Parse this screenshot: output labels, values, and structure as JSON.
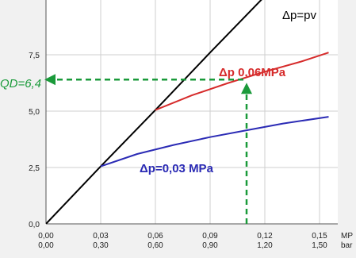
{
  "chart_data": {
    "type": "line",
    "x": {
      "ticks": [
        0,
        0.03,
        0.06,
        0.09,
        0.12,
        0.15
      ],
      "primary_labels": [
        "0,00",
        "0,03",
        "0,06",
        "0,09",
        "0,12",
        "0,15"
      ],
      "secondary_labels": [
        "0,00",
        "0,30",
        "0,60",
        "0,90",
        "1,20",
        "1,50"
      ],
      "primary_unit": "MP",
      "secondary_unit": "bar",
      "range": [
        0,
        0.15
      ]
    },
    "y": {
      "ticks": [
        0,
        2.5,
        5.0,
        7.5
      ],
      "labels": [
        "0,0",
        "2,5",
        "5,0",
        "7,5"
      ],
      "range": [
        0,
        10
      ]
    },
    "grid": true,
    "series": [
      {
        "name": "Δp=pv",
        "color": "#000000",
        "points": [
          [
            0,
            0
          ],
          [
            0.03,
            2.55
          ],
          [
            0.06,
            5.05
          ],
          [
            0.09,
            7.6
          ],
          [
            0.12,
            10.1
          ]
        ]
      },
      {
        "name": "Δp 0,06MPa",
        "color": "#d62b2b",
        "points": [
          [
            0.06,
            5.05
          ],
          [
            0.08,
            5.7
          ],
          [
            0.1,
            6.25
          ],
          [
            0.12,
            6.75
          ],
          [
            0.14,
            7.2
          ],
          [
            0.155,
            7.6
          ]
        ]
      },
      {
        "name": "Δp=0,03 MPa",
        "color": "#2b2bb5",
        "points": [
          [
            0.03,
            2.55
          ],
          [
            0.05,
            3.1
          ],
          [
            0.07,
            3.5
          ],
          [
            0.09,
            3.85
          ],
          [
            0.11,
            4.15
          ],
          [
            0.13,
            4.45
          ],
          [
            0.155,
            4.75
          ]
        ]
      }
    ],
    "annotations": {
      "pv_label": {
        "text": "Δp=pv",
        "color": "#000000"
      },
      "red_label": {
        "text": "Δp 0,06MPa",
        "color": "#d62b2b"
      },
      "blue_label": {
        "text": "Δp=0,03 MPa",
        "color": "#2b2bb5"
      },
      "readout": {
        "text": "QD=6,4",
        "color": "#1a9a3a",
        "x": 0.11,
        "y": 6.4
      }
    }
  }
}
